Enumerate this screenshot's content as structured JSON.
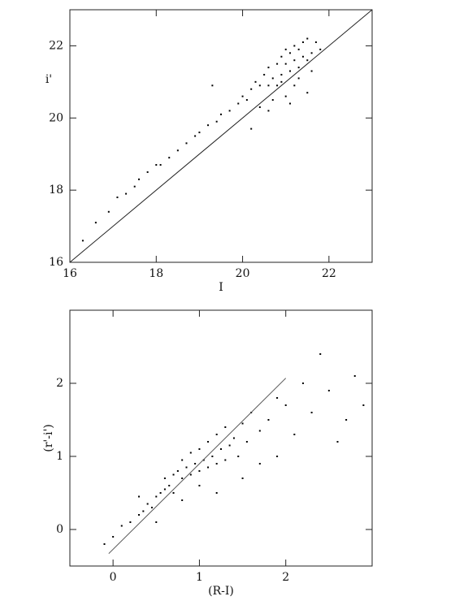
{
  "chart_data": [
    {
      "type": "scatter",
      "x_label": "I",
      "y_label": "i'",
      "xlim": [
        16,
        23
      ],
      "ylim": [
        16,
        23
      ],
      "xticks": [
        16,
        18,
        20,
        22
      ],
      "yticks": [
        16,
        18,
        20,
        22
      ],
      "color": "#000000",
      "x": [
        16.3,
        16.6,
        16.9,
        17.1,
        17.3,
        17.5,
        17.6,
        17.8,
        18.0,
        18.1,
        18.3,
        18.5,
        18.7,
        18.9,
        19.0,
        19.2,
        19.4,
        19.5,
        19.7,
        19.9,
        20.0,
        20.1,
        20.2,
        20.3,
        20.4,
        20.5,
        20.6,
        20.6,
        20.7,
        20.8,
        20.8,
        20.9,
        20.9,
        21.0,
        21.0,
        21.1,
        21.1,
        21.2,
        21.2,
        21.3,
        21.3,
        21.4,
        21.4,
        21.5,
        21.5,
        21.6,
        21.6,
        21.7,
        21.2,
        20.9,
        21.0,
        21.3,
        20.7,
        21.5,
        20.4,
        21.8,
        19.3,
        20.2,
        20.6,
        21.1
      ],
      "values": [
        16.6,
        17.1,
        17.4,
        17.8,
        17.9,
        18.1,
        18.3,
        18.5,
        18.7,
        18.7,
        18.9,
        19.1,
        19.3,
        19.5,
        19.6,
        19.8,
        19.9,
        20.1,
        20.2,
        20.4,
        20.6,
        20.5,
        20.8,
        21.0,
        20.9,
        21.2,
        20.9,
        21.4,
        21.1,
        21.5,
        20.9,
        21.7,
        21.2,
        21.5,
        21.9,
        21.3,
        21.8,
        21.6,
        22.0,
        21.4,
        21.9,
        21.7,
        22.1,
        21.6,
        22.2,
        21.8,
        21.3,
        22.1,
        20.9,
        21.0,
        20.6,
        21.1,
        20.5,
        20.7,
        20.3,
        21.9,
        20.9,
        19.7,
        20.2,
        20.4
      ],
      "line": {
        "x": [
          16,
          23
        ],
        "values": [
          16,
          23
        ],
        "color": "#222222"
      }
    },
    {
      "type": "scatter",
      "x_label": "(R-I)",
      "y_label": "(r'-i')",
      "xlim": [
        -0.5,
        3
      ],
      "ylim": [
        -0.5,
        3
      ],
      "xticks": [
        0,
        1,
        2
      ],
      "yticks": [
        0,
        1,
        2
      ],
      "color": "#000000",
      "x": [
        -0.1,
        0.0,
        0.1,
        0.2,
        0.3,
        0.35,
        0.4,
        0.45,
        0.5,
        0.55,
        0.6,
        0.6,
        0.65,
        0.7,
        0.7,
        0.75,
        0.8,
        0.8,
        0.85,
        0.9,
        0.9,
        0.95,
        1.0,
        1.0,
        1.05,
        1.1,
        1.1,
        1.15,
        1.2,
        1.2,
        1.25,
        1.3,
        1.3,
        1.35,
        1.4,
        1.45,
        1.5,
        1.55,
        1.6,
        1.7,
        1.8,
        1.9,
        2.0,
        2.1,
        2.2,
        2.3,
        2.5,
        2.6,
        2.8,
        2.9,
        1.0,
        0.8,
        1.2,
        1.5,
        0.5,
        2.4,
        1.7,
        2.7,
        0.3,
        1.9
      ],
      "values": [
        -0.2,
        -0.1,
        0.05,
        0.1,
        0.2,
        0.25,
        0.35,
        0.3,
        0.45,
        0.5,
        0.55,
        0.7,
        0.6,
        0.75,
        0.5,
        0.8,
        0.7,
        0.95,
        0.85,
        0.75,
        1.05,
        0.9,
        0.8,
        1.1,
        0.95,
        0.85,
        1.2,
        1.0,
        0.9,
        1.3,
        1.1,
        0.95,
        1.4,
        1.15,
        1.25,
        1.0,
        1.45,
        1.2,
        1.6,
        1.35,
        1.5,
        1.8,
        1.7,
        1.3,
        2.0,
        1.6,
        1.9,
        1.2,
        2.1,
        1.7,
        0.6,
        0.4,
        0.5,
        0.7,
        0.1,
        2.4,
        0.9,
        1.5,
        0.45,
        1.0
      ],
      "line": {
        "x": [
          -0.05,
          2.0
        ],
        "values": [
          -0.33,
          2.07
        ],
        "color": "#555555"
      }
    }
  ]
}
